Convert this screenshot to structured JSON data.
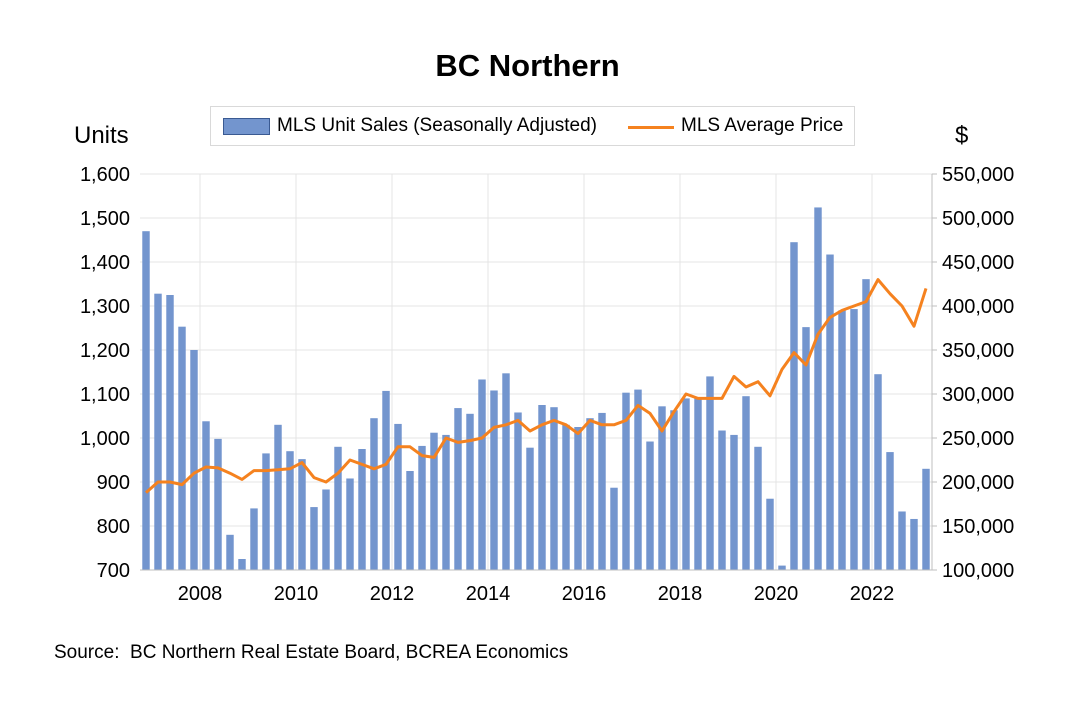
{
  "chart_data": {
    "type": "bar+line",
    "title": "BC Northern",
    "y_left_label": "Units",
    "y_right_label": "$",
    "y_left_ticks": [
      "1,600",
      "1,500",
      "1,400",
      "1,300",
      "1,200",
      "1,100",
      "1,000",
      "900",
      "800",
      "700"
    ],
    "y_right_ticks": [
      "550,000",
      "500,000",
      "450,000",
      "400,000",
      "350,000",
      "300,000",
      "250,000",
      "200,000",
      "150,000",
      "100,000"
    ],
    "ylim_left": [
      700,
      1600
    ],
    "ylim_right": [
      100000,
      550000
    ],
    "x_tick_labels": [
      "2008",
      "2010",
      "2012",
      "2014",
      "2016",
      "2018",
      "2020",
      "2022"
    ],
    "x_start_year": 2006.75,
    "x_end_year": 2023.25,
    "grid": true,
    "legend_position": "top",
    "series": [
      {
        "name": "MLS Unit Sales (Seasonally Adjusted)",
        "type": "bar",
        "axis": "left",
        "color": "#7395ce",
        "values": [
          1470,
          1328,
          1325,
          1253,
          1200,
          1038,
          998,
          780,
          725,
          840,
          965,
          1030,
          970,
          952,
          843,
          883,
          980,
          908,
          975,
          1045,
          1107,
          1032,
          925,
          982,
          1012,
          1007,
          1068,
          1055,
          1133,
          1108,
          1147,
          1058,
          978,
          1075,
          1070,
          1030,
          1025,
          1045,
          1057,
          887,
          1103,
          1110,
          992,
          1072,
          1063,
          1090,
          1093,
          1140,
          1017,
          1007,
          1095,
          980,
          862,
          710,
          1445,
          1252,
          1524,
          1417,
          1290,
          1293,
          1361,
          1145,
          968,
          833,
          816,
          930
        ]
      },
      {
        "name": "MLS Average Price",
        "type": "line",
        "axis": "right",
        "color": "#f5821f",
        "values": [
          188000,
          200000,
          200000,
          197000,
          210000,
          217000,
          216000,
          210000,
          203000,
          213000,
          213000,
          214000,
          215000,
          222000,
          205000,
          200000,
          210000,
          225000,
          220000,
          215000,
          220000,
          240000,
          240000,
          230000,
          228000,
          250000,
          245000,
          247000,
          250000,
          262000,
          265000,
          270000,
          258000,
          265000,
          270000,
          265000,
          255000,
          270000,
          265000,
          265000,
          270000,
          287000,
          278000,
          258000,
          280000,
          300000,
          295000,
          295000,
          295000,
          320000,
          308000,
          314000,
          298000,
          328000,
          347000,
          333000,
          368000,
          387000,
          395000,
          400000,
          405000,
          430000,
          414000,
          400000,
          377000,
          420000
        ]
      }
    ],
    "source": "Source:  BC Northern Real Estate Board, BCREA Economics"
  }
}
